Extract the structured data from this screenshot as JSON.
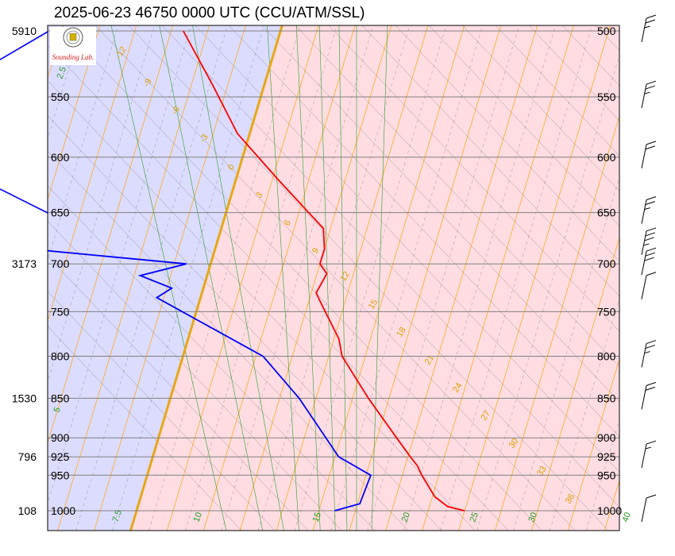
{
  "title": "2025-06-23 46750 0000 UTC (CCU/ATM/SSL)",
  "logo": {
    "text": "Sounding Lab."
  },
  "colors": {
    "warm_fill": "#ffdde2",
    "cold_fill": "#dcdcff",
    "temperature": "#ff0000",
    "dewpoint": "#0000ff",
    "freezing_isotherm": "#e6a817",
    "isotherm": "#ffa500",
    "dry_adiabat": "#606060",
    "moist_adiabat": "#404040",
    "mixing_ratio": "#2ca02c",
    "isobar": "#808080"
  },
  "chart_data": {
    "type": "line",
    "title": "2025-06-23 46750 0000 UTC (CCU/ATM/SSL)",
    "y_scale": "log-pressure",
    "ylim_hpa": [
      1000,
      500
    ],
    "pressure_levels": [
      500,
      550,
      600,
      650,
      700,
      750,
      800,
      850,
      900,
      925,
      950,
      1000
    ],
    "height_labels": [
      {
        "p": 500,
        "label": "5910"
      },
      {
        "p": 700,
        "label": "3173"
      },
      {
        "p": 850,
        "label": "1530"
      },
      {
        "p": 925,
        "label": "796"
      },
      {
        "p": 1000,
        "label": "108"
      }
    ],
    "isotherm_labels": [
      {
        "t": -12,
        "label": "-12"
      },
      {
        "t": -9,
        "label": "-9"
      },
      {
        "t": -6,
        "label": "-6"
      },
      {
        "t": -3,
        "label": "-3"
      },
      {
        "t": 0,
        "label": "0"
      },
      {
        "t": 3,
        "label": "3"
      },
      {
        "t": 6,
        "label": "6"
      },
      {
        "t": 9,
        "label": "9"
      },
      {
        "t": 12,
        "label": "12"
      },
      {
        "t": 15,
        "label": "15"
      },
      {
        "t": 18,
        "label": "18"
      },
      {
        "t": 21,
        "label": "21"
      },
      {
        "t": 24,
        "label": "24"
      },
      {
        "t": 27,
        "label": "27"
      },
      {
        "t": 30,
        "label": "30"
      },
      {
        "t": 33,
        "label": "33"
      },
      {
        "t": 36,
        "label": "36"
      }
    ],
    "mixing_ratio_labels": [
      "2.5",
      "5",
      "7.5",
      "10",
      "15",
      "20",
      "25",
      "30",
      "40"
    ],
    "mixing_ratio_g_per_kg": [
      2.5,
      5,
      7.5,
      10,
      15,
      20,
      25,
      30,
      40
    ],
    "series": [
      {
        "key": "temperature",
        "points": [
          {
            "p": 1000,
            "t": 27.0
          },
          {
            "p": 994,
            "t": 25.5
          },
          {
            "p": 980,
            "t": 24.2
          },
          {
            "p": 950,
            "t": 22.6
          },
          {
            "p": 937,
            "t": 22.0
          },
          {
            "p": 925,
            "t": 21.2
          },
          {
            "p": 900,
            "t": 19.6
          },
          {
            "p": 850,
            "t": 16.3
          },
          {
            "p": 800,
            "t": 13.1
          },
          {
            "p": 780,
            "t": 12.4
          },
          {
            "p": 740,
            "t": 10.0
          },
          {
            "p": 730,
            "t": 9.4
          },
          {
            "p": 710,
            "t": 9.8
          },
          {
            "p": 700,
            "t": 9.0
          },
          {
            "p": 685,
            "t": 9.0
          },
          {
            "p": 665,
            "t": 8.4
          },
          {
            "p": 620,
            "t": 3.5
          },
          {
            "p": 580,
            "t": -1.0
          },
          {
            "p": 540,
            "t": -4.3
          },
          {
            "p": 500,
            "t": -8.0
          }
        ]
      },
      {
        "key": "dewpoint",
        "points": [
          {
            "p": 1000,
            "t": 16.3
          },
          {
            "p": 990,
            "t": 18.2
          },
          {
            "p": 950,
            "t": 18.4
          },
          {
            "p": 925,
            "t": 15.3
          },
          {
            "p": 850,
            "t": 10.6
          },
          {
            "p": 800,
            "t": 6.6
          },
          {
            "p": 735,
            "t": -3.6
          },
          {
            "p": 725,
            "t": -2.6
          },
          {
            "p": 712,
            "t": -5.5
          },
          {
            "p": 700,
            "t": -2.0
          },
          {
            "p": 680,
            "t": -20.0
          },
          {
            "p": 640,
            "t": -40.0
          }
        ]
      }
    ],
    "wind_barbs": [
      {
        "p": 1000,
        "dir": 225,
        "kt": 10
      },
      {
        "p": 925,
        "dir": 270,
        "kt": 5
      },
      {
        "p": 850,
        "dir": 270,
        "kt": 20
      },
      {
        "p": 800,
        "dir": 270,
        "kt": 15
      },
      {
        "p": 725,
        "dir": 270,
        "kt": 10
      },
      {
        "p": 700,
        "dir": 250,
        "kt": 30
      },
      {
        "p": 680,
        "dir": 250,
        "kt": 25
      },
      {
        "p": 650,
        "dir": 265,
        "kt": 15
      },
      {
        "p": 600,
        "dir": 275,
        "kt": 20
      },
      {
        "p": 550,
        "dir": 270,
        "kt": 15
      },
      {
        "p": 500,
        "dir": 280,
        "kt": 15
      }
    ]
  }
}
